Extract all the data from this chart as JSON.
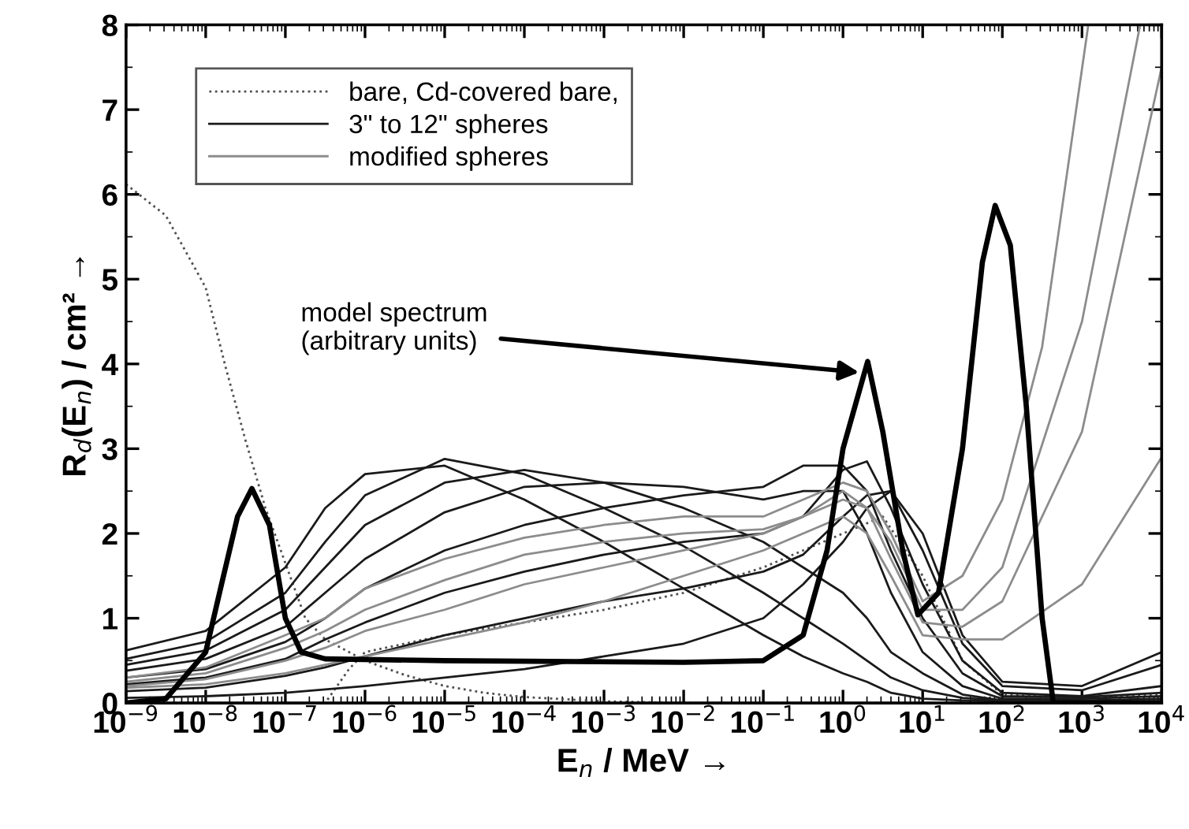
{
  "chart_data": {
    "type": "line",
    "xlabel": "E$_{n}$ / MeV →",
    "ylabel": "R$_{d}$(E$_{n}$) / cm² →",
    "log": "x",
    "xlim": [
      1e-09,
      10000.0
    ],
    "ylim": [
      0,
      8
    ],
    "xticks": [
      {
        "value": 1e-09,
        "label": "10$^{−9}$"
      },
      {
        "value": 1e-08,
        "label": "10$^{−8}$"
      },
      {
        "value": 1e-07,
        "label": "10$^{−7}$"
      },
      {
        "value": 1e-06,
        "label": "10$^{−6}$"
      },
      {
        "value": 1e-05,
        "label": "10$^{−5}$"
      },
      {
        "value": 0.0001,
        "label": "10$^{−4}$"
      },
      {
        "value": 0.001,
        "label": "10$^{−3}$"
      },
      {
        "value": 0.01,
        "label": "10$^{−2}$"
      },
      {
        "value": 0.1,
        "label": "10$^{−1}$"
      },
      {
        "value": 1,
        "label": "10$^{0}$"
      },
      {
        "value": 10,
        "label": "10$^{1}$"
      },
      {
        "value": 100,
        "label": "10$^{2}$"
      },
      {
        "value": 1000,
        "label": "10$^{3}$"
      },
      {
        "value": 10000,
        "label": "10$^{4}$"
      }
    ],
    "yticks": [
      0,
      1,
      2,
      3,
      4,
      5,
      6,
      7,
      8
    ],
    "grid": false,
    "legend": "top left",
    "marker": "none",
    "x": [
      1e-09,
      1e-08,
      1e-07,
      3.16e-07,
      1e-06,
      1e-05,
      0.0001,
      0.001,
      0.01,
      0.1,
      0.316,
      1,
      2,
      4,
      10,
      31.6,
      100,
      1000,
      10000.0
    ],
    "annotations": [
      {
        "text": "model spectrum\n(arbitrary units)",
        "x": 1.6,
        "y": 3.9
      }
    ],
    "series": [
      {
        "name": "bare, Cd-covered bare,",
        "color": "#505050",
        "line_style": "dotted",
        "x": [
          1e-09,
          3.16e-09,
          1e-08,
          1.78e-08,
          3.16e-08,
          5.62e-08,
          1e-07,
          1.78e-07,
          3.16e-07,
          1e-06,
          3.16e-06,
          1e-05,
          3.16e-05,
          0.0001,
          0.001,
          0.01,
          1,
          10000.0
        ],
        "values": [
          6.12,
          5.75,
          4.9,
          3.96,
          3.1,
          2.3,
          1.65,
          1.0,
          0.75,
          0.5,
          0.33,
          0.2,
          0.12,
          0.07,
          0.02,
          0,
          0,
          0
        ]
      },
      {
        "color": "#505050",
        "line_style": "dotted",
        "x": [
          1e-09,
          3.16e-07,
          6.3e-07,
          1e-06,
          1e-05,
          0.0001,
          0.001,
          0.01,
          0.1,
          1,
          3.16,
          10,
          31.6,
          100,
          1000,
          10000.0
        ],
        "values": [
          0,
          0,
          0.4,
          0.6,
          0.8,
          0.95,
          1.1,
          1.3,
          1.6,
          2.0,
          2.2,
          1.5,
          0.5,
          0.1,
          0.05,
          0.1
        ]
      },
      {
        "name": "3\" to 12\" spheres",
        "color": "#1a1a1a",
        "line_style": "solid",
        "values": [
          0.62,
          0.85,
          1.6,
          2.3,
          2.7,
          2.8,
          2.4,
          1.9,
          1.35,
          0.8,
          0.55,
          0.35,
          0.25,
          0.12,
          0.05,
          0.03,
          0.02,
          0.02,
          0.02
        ]
      },
      {
        "color": "#1a1a1a",
        "line_style": "solid",
        "values": [
          0.52,
          0.72,
          1.3,
          1.9,
          2.45,
          2.88,
          2.7,
          2.3,
          1.85,
          1.3,
          1.0,
          0.7,
          0.5,
          0.3,
          0.15,
          0.06,
          0.03,
          0.02,
          0.02
        ]
      },
      {
        "color": "#1a1a1a",
        "line_style": "solid",
        "values": [
          0.45,
          0.62,
          1.1,
          1.6,
          2.1,
          2.6,
          2.75,
          2.6,
          2.3,
          1.9,
          1.6,
          1.3,
          1.0,
          0.6,
          0.35,
          0.1,
          0.03,
          0.03,
          0.05
        ]
      },
      {
        "color": "#1a1a1a",
        "line_style": "solid",
        "values": [
          0.38,
          0.52,
          0.9,
          1.3,
          1.7,
          2.25,
          2.55,
          2.6,
          2.55,
          2.4,
          2.5,
          2.5,
          2.0,
          1.3,
          0.6,
          0.2,
          0.05,
          0.05,
          0.08
        ]
      },
      {
        "color": "#1a1a1a",
        "line_style": "solid",
        "values": [
          0.3,
          0.4,
          0.72,
          1.0,
          1.35,
          1.8,
          2.1,
          2.3,
          2.45,
          2.55,
          2.8,
          2.8,
          2.5,
          1.8,
          1.0,
          0.35,
          0.08,
          0.07,
          0.12
        ]
      },
      {
        "color": "#1a1a1a",
        "line_style": "solid",
        "values": [
          0.22,
          0.3,
          0.52,
          0.75,
          0.95,
          1.3,
          1.55,
          1.75,
          1.9,
          2.0,
          2.2,
          2.75,
          2.85,
          2.3,
          1.4,
          0.5,
          0.12,
          0.08,
          0.2
        ]
      },
      {
        "color": "#1a1a1a",
        "line_style": "solid",
        "values": [
          0.14,
          0.18,
          0.32,
          0.42,
          0.55,
          0.8,
          1.0,
          1.2,
          1.35,
          1.55,
          1.75,
          2.2,
          2.45,
          2.5,
          1.8,
          0.7,
          0.2,
          0.15,
          0.45
        ]
      },
      {
        "color": "#1a1a1a",
        "line_style": "solid",
        "values": [
          0.06,
          0.08,
          0.12,
          0.16,
          0.2,
          0.3,
          0.4,
          0.55,
          0.7,
          1.0,
          1.4,
          1.9,
          2.3,
          2.5,
          2.0,
          0.8,
          0.25,
          0.2,
          0.6
        ]
      },
      {
        "name": "modified spheres",
        "color": "#8c8c8c",
        "line_style": "solid",
        "x": [
          1e-09,
          1e-08,
          1e-07,
          3.16e-07,
          1e-06,
          1e-05,
          0.0001,
          0.001,
          0.01,
          0.1,
          0.316,
          1,
          2,
          4,
          10,
          31.6,
          100,
          316,
          1200
        ],
        "values": [
          0.3,
          0.42,
          0.8,
          1.0,
          1.35,
          1.7,
          1.95,
          2.1,
          2.2,
          2.2,
          2.4,
          2.6,
          2.5,
          2.0,
          1.2,
          1.5,
          2.4,
          4.2,
          8
        ]
      },
      {
        "color": "#8c8c8c",
        "line_style": "solid",
        "x": [
          1e-09,
          1e-08,
          1e-07,
          3.16e-07,
          1e-06,
          1e-05,
          0.0001,
          0.001,
          0.01,
          0.1,
          0.316,
          1,
          2,
          4,
          10,
          31.6,
          100,
          1000,
          5370
        ],
        "values": [
          0.25,
          0.35,
          0.65,
          0.85,
          1.1,
          1.45,
          1.75,
          1.9,
          2.0,
          2.05,
          2.2,
          2.4,
          2.3,
          1.9,
          1.1,
          1.1,
          1.6,
          4.5,
          8
        ]
      },
      {
        "color": "#8c8c8c",
        "line_style": "solid",
        "values": [
          0.2,
          0.28,
          0.5,
          0.65,
          0.85,
          1.1,
          1.4,
          1.6,
          1.8,
          2.0,
          2.2,
          2.5,
          2.3,
          1.7,
          0.95,
          0.9,
          1.2,
          3.2,
          7.5
        ]
      },
      {
        "color": "#8c8c8c",
        "line_style": "solid",
        "values": [
          0.18,
          0.22,
          0.35,
          0.45,
          0.55,
          0.75,
          0.95,
          1.2,
          1.5,
          1.8,
          2.0,
          2.2,
          2.0,
          1.5,
          0.8,
          0.75,
          0.75,
          1.4,
          2.9
        ]
      },
      {
        "color": "#000000",
        "line_style": "solid",
        "x": [
          1e-09,
          3.16e-09,
          1e-08,
          1.58e-08,
          2.51e-08,
          3.8e-08,
          6.31e-08,
          1e-07,
          1.58e-07,
          3.16e-07,
          1e-05,
          0.01,
          0.1,
          0.316,
          0.631,
          1,
          2.04,
          3.16,
          5.62,
          8.71,
          15.8,
          31.6,
          56.2,
          81.3,
          126,
          200,
          316,
          437,
          1000,
          10000.0
        ],
        "values": [
          0,
          0.05,
          0.6,
          1.4,
          2.2,
          2.53,
          2.1,
          1.0,
          0.6,
          0.52,
          0.5,
          0.48,
          0.5,
          0.8,
          1.8,
          3.0,
          4.03,
          3.2,
          1.8,
          1.04,
          1.3,
          3.0,
          5.2,
          5.87,
          5.4,
          3.5,
          1.0,
          0,
          0,
          0
        ]
      }
    ]
  }
}
